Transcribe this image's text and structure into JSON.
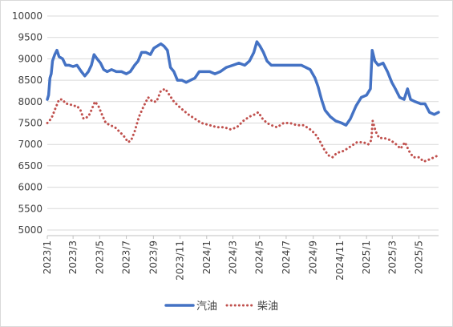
{
  "chart_data": {
    "type": "line",
    "ylim": [
      5000,
      10000
    ],
    "y_ticks": [
      "5000",
      "5500",
      "6000",
      "6500",
      "7000",
      "7500",
      "8000",
      "8500",
      "9000",
      "9500",
      "10000"
    ],
    "x_tick_labels": [
      "2023/1",
      "2023/3",
      "2023/5",
      "2023/7",
      "2023/9",
      "2023/11",
      "2024/1",
      "2024/3",
      "2024/5",
      "2024/7",
      "2024/9",
      "2024/11",
      "2025/1",
      "2025/3",
      "2025/5"
    ],
    "x_range": [
      "2023-01-01",
      "2025-06-15"
    ],
    "grid": "horizontal",
    "legend_position": "bottom",
    "series": [
      {
        "name": "汽油",
        "style": "solid",
        "color": "#4472c4",
        "points": [
          [
            "2023-01-01",
            8050
          ],
          [
            "2023-01-04",
            8150
          ],
          [
            "2023-01-07",
            8550
          ],
          [
            "2023-01-10",
            8650
          ],
          [
            "2023-01-13",
            8950
          ],
          [
            "2023-01-18",
            9100
          ],
          [
            "2023-01-23",
            9200
          ],
          [
            "2023-01-28",
            9050
          ],
          [
            "2023-02-05",
            9000
          ],
          [
            "2023-02-12",
            8850
          ],
          [
            "2023-02-20",
            8850
          ],
          [
            "2023-03-01",
            8820
          ],
          [
            "2023-03-10",
            8850
          ],
          [
            "2023-03-20",
            8700
          ],
          [
            "2023-03-28",
            8600
          ],
          [
            "2023-04-05",
            8700
          ],
          [
            "2023-04-12",
            8850
          ],
          [
            "2023-04-18",
            9100
          ],
          [
            "2023-04-25",
            9000
          ],
          [
            "2023-05-03",
            8900
          ],
          [
            "2023-05-10",
            8750
          ],
          [
            "2023-05-18",
            8700
          ],
          [
            "2023-05-28",
            8750
          ],
          [
            "2023-06-08",
            8700
          ],
          [
            "2023-06-20",
            8700
          ],
          [
            "2023-07-01",
            8650
          ],
          [
            "2023-07-10",
            8700
          ],
          [
            "2023-07-20",
            8850
          ],
          [
            "2023-07-28",
            8950
          ],
          [
            "2023-08-05",
            9150
          ],
          [
            "2023-08-15",
            9150
          ],
          [
            "2023-08-25",
            9100
          ],
          [
            "2023-09-02",
            9250
          ],
          [
            "2023-09-10",
            9300
          ],
          [
            "2023-09-18",
            9350
          ],
          [
            "2023-09-25",
            9300
          ],
          [
            "2023-10-03",
            9200
          ],
          [
            "2023-10-10",
            8800
          ],
          [
            "2023-10-18",
            8700
          ],
          [
            "2023-10-26",
            8500
          ],
          [
            "2023-11-05",
            8500
          ],
          [
            "2023-11-15",
            8450
          ],
          [
            "2023-11-25",
            8500
          ],
          [
            "2023-12-05",
            8550
          ],
          [
            "2023-12-15",
            8700
          ],
          [
            "2023-12-25",
            8700
          ],
          [
            "2024-01-08",
            8700
          ],
          [
            "2024-01-20",
            8650
          ],
          [
            "2024-02-01",
            8700
          ],
          [
            "2024-02-15",
            8800
          ],
          [
            "2024-03-01",
            8850
          ],
          [
            "2024-03-15",
            8900
          ],
          [
            "2024-03-28",
            8850
          ],
          [
            "2024-04-08",
            8950
          ],
          [
            "2024-04-18",
            9150
          ],
          [
            "2024-04-25",
            9400
          ],
          [
            "2024-05-02",
            9300
          ],
          [
            "2024-05-10",
            9150
          ],
          [
            "2024-05-18",
            8950
          ],
          [
            "2024-05-28",
            8850
          ],
          [
            "2024-06-10",
            8850
          ],
          [
            "2024-06-25",
            8850
          ],
          [
            "2024-07-10",
            8850
          ],
          [
            "2024-07-25",
            8850
          ],
          [
            "2024-08-05",
            8850
          ],
          [
            "2024-08-15",
            8800
          ],
          [
            "2024-08-25",
            8750
          ],
          [
            "2024-09-05",
            8550
          ],
          [
            "2024-09-12",
            8350
          ],
          [
            "2024-09-20",
            8050
          ],
          [
            "2024-09-28",
            7800
          ],
          [
            "2024-10-10",
            7650
          ],
          [
            "2024-10-22",
            7550
          ],
          [
            "2024-11-05",
            7500
          ],
          [
            "2024-11-15",
            7450
          ],
          [
            "2024-11-25",
            7600
          ],
          [
            "2024-12-08",
            7900
          ],
          [
            "2024-12-20",
            8100
          ],
          [
            "2025-01-01",
            8150
          ],
          [
            "2025-01-10",
            8300
          ],
          [
            "2025-01-14",
            9200
          ],
          [
            "2025-01-20",
            8950
          ],
          [
            "2025-01-28",
            8850
          ],
          [
            "2025-02-08",
            8900
          ],
          [
            "2025-02-18",
            8700
          ],
          [
            "2025-02-28",
            8450
          ],
          [
            "2025-03-08",
            8300
          ],
          [
            "2025-03-18",
            8100
          ],
          [
            "2025-03-28",
            8050
          ],
          [
            "2025-04-05",
            8300
          ],
          [
            "2025-04-12",
            8050
          ],
          [
            "2025-04-22",
            8000
          ],
          [
            "2025-05-05",
            7950
          ],
          [
            "2025-05-15",
            7950
          ],
          [
            "2025-05-25",
            7750
          ],
          [
            "2025-06-05",
            7700
          ],
          [
            "2025-06-15",
            7750
          ]
        ]
      },
      {
        "name": "柴油",
        "style": "dotted",
        "color": "#c0504d",
        "points": [
          [
            "2023-01-01",
            7500
          ],
          [
            "2023-01-06",
            7550
          ],
          [
            "2023-01-12",
            7650
          ],
          [
            "2023-01-20",
            7850
          ],
          [
            "2023-01-28",
            8050
          ],
          [
            "2023-02-05",
            8050
          ],
          [
            "2023-02-12",
            7950
          ],
          [
            "2023-02-20",
            7950
          ],
          [
            "2023-03-01",
            7900
          ],
          [
            "2023-03-10",
            7900
          ],
          [
            "2023-03-18",
            7800
          ],
          [
            "2023-03-25",
            7600
          ],
          [
            "2023-04-05",
            7650
          ],
          [
            "2023-04-12",
            7800
          ],
          [
            "2023-04-20",
            8000
          ],
          [
            "2023-04-28",
            7900
          ],
          [
            "2023-05-06",
            7700
          ],
          [
            "2023-05-15",
            7500
          ],
          [
            "2023-05-25",
            7450
          ],
          [
            "2023-06-05",
            7400
          ],
          [
            "2023-06-15",
            7300
          ],
          [
            "2023-06-25",
            7200
          ],
          [
            "2023-07-05",
            7050
          ],
          [
            "2023-07-12",
            7100
          ],
          [
            "2023-07-20",
            7300
          ],
          [
            "2023-07-30",
            7650
          ],
          [
            "2023-08-10",
            7900
          ],
          [
            "2023-08-20",
            8100
          ],
          [
            "2023-08-30",
            8000
          ],
          [
            "2023-09-08",
            8000
          ],
          [
            "2023-09-18",
            8250
          ],
          [
            "2023-09-28",
            8300
          ],
          [
            "2023-10-08",
            8150
          ],
          [
            "2023-10-18",
            8000
          ],
          [
            "2023-10-28",
            7900
          ],
          [
            "2023-11-08",
            7800
          ],
          [
            "2023-11-20",
            7700
          ],
          [
            "2023-12-05",
            7600
          ],
          [
            "2023-12-20",
            7500
          ],
          [
            "2024-01-08",
            7450
          ],
          [
            "2024-01-25",
            7400
          ],
          [
            "2024-02-10",
            7400
          ],
          [
            "2024-02-25",
            7350
          ],
          [
            "2024-03-10",
            7400
          ],
          [
            "2024-03-25",
            7550
          ],
          [
            "2024-04-08",
            7650
          ],
          [
            "2024-04-20",
            7700
          ],
          [
            "2024-04-28",
            7750
          ],
          [
            "2024-05-08",
            7600
          ],
          [
            "2024-05-18",
            7500
          ],
          [
            "2024-05-28",
            7450
          ],
          [
            "2024-06-10",
            7400
          ],
          [
            "2024-06-25",
            7500
          ],
          [
            "2024-07-10",
            7500
          ],
          [
            "2024-07-25",
            7450
          ],
          [
            "2024-08-10",
            7450
          ],
          [
            "2024-08-25",
            7350
          ],
          [
            "2024-09-05",
            7250
          ],
          [
            "2024-09-15",
            7100
          ],
          [
            "2024-09-25",
            6900
          ],
          [
            "2024-10-05",
            6750
          ],
          [
            "2024-10-15",
            6700
          ],
          [
            "2024-10-25",
            6800
          ],
          [
            "2024-11-10",
            6850
          ],
          [
            "2024-11-25",
            6950
          ],
          [
            "2024-12-10",
            7050
          ],
          [
            "2024-12-25",
            7050
          ],
          [
            "2025-01-05",
            7000
          ],
          [
            "2025-01-12",
            7100
          ],
          [
            "2025-01-15",
            7550
          ],
          [
            "2025-01-22",
            7300
          ],
          [
            "2025-01-30",
            7150
          ],
          [
            "2025-02-10",
            7150
          ],
          [
            "2025-02-25",
            7100
          ],
          [
            "2025-03-10",
            7000
          ],
          [
            "2025-03-20",
            6900
          ],
          [
            "2025-03-30",
            7050
          ],
          [
            "2025-04-08",
            6850
          ],
          [
            "2025-04-18",
            6700
          ],
          [
            "2025-05-01",
            6700
          ],
          [
            "2025-05-12",
            6600
          ],
          [
            "2025-05-25",
            6650
          ],
          [
            "2025-06-05",
            6700
          ],
          [
            "2025-06-15",
            6750
          ]
        ]
      }
    ]
  }
}
